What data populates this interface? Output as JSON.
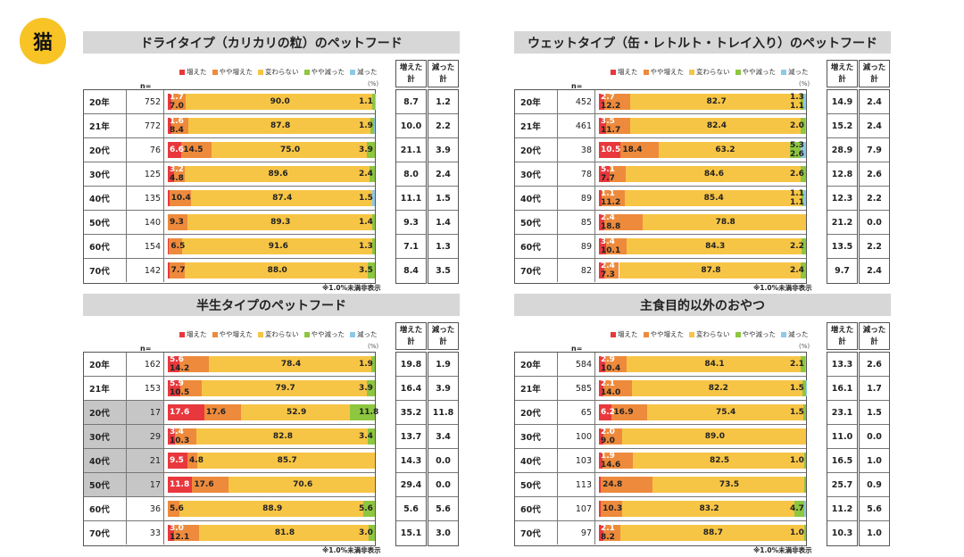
{
  "category_badge": "猫",
  "legend": [
    "増えた",
    "やや増えた",
    "変わらない",
    "やや減った",
    "減った"
  ],
  "pct_unit": "(%)",
  "n_header": "n=",
  "col_headers": {
    "up": "増えた計",
    "down": "減った計"
  },
  "note": "※1.0%未満非表示",
  "colors": {
    "increased": "#e8383d",
    "slightly_increased": "#ee8a3c",
    "unchanged": "#f7c545",
    "slightly_decreased": "#8dc63f",
    "decreased": "#8ec9e8",
    "title_bg": "#d7d7d7",
    "badge": "#f7c325",
    "gray_row": "#c6c6c6"
  },
  "chart_data": [
    {
      "type": "bar",
      "title": "ドライタイプ（カリカリの粒）のペットフード",
      "series_names": [
        "増えた",
        "やや増えた",
        "変わらない",
        "やや減った",
        "減った"
      ],
      "rows": [
        {
          "label": "20年",
          "n": "752",
          "values": [
            1.7,
            7.0,
            90.0,
            1.1,
            0.3
          ],
          "up": "8.7",
          "down": "1.2"
        },
        {
          "label": "21年",
          "n": "772",
          "values": [
            1.6,
            8.4,
            87.8,
            1.9,
            0.3
          ],
          "up": "10.0",
          "down": "2.2"
        },
        {
          "label": "20代",
          "n": "76",
          "values": [
            6.6,
            14.5,
            75.0,
            3.9,
            0
          ],
          "up": "21.1",
          "down": "3.9"
        },
        {
          "label": "30代",
          "n": "125",
          "values": [
            3.2,
            4.8,
            89.6,
            2.4,
            0
          ],
          "up": "8.0",
          "down": "2.4"
        },
        {
          "label": "40代",
          "n": "135",
          "values": [
            0.7,
            10.4,
            87.4,
            0,
            1.5
          ],
          "up": "11.1",
          "down": "1.5"
        },
        {
          "label": "50代",
          "n": "140",
          "values": [
            0,
            9.3,
            89.3,
            1.4,
            0
          ],
          "up": "9.3",
          "down": "1.4"
        },
        {
          "label": "60代",
          "n": "154",
          "values": [
            0.6,
            6.5,
            91.6,
            1.3,
            0
          ],
          "up": "7.1",
          "down": "1.3"
        },
        {
          "label": "70代",
          "n": "142",
          "values": [
            0.7,
            7.7,
            88.0,
            3.5,
            0
          ],
          "up": "8.4",
          "down": "3.5"
        }
      ]
    },
    {
      "type": "bar",
      "title": "ウェットタイプ（缶・レトルト・トレイ入り）のペットフード",
      "series_names": [
        "増えた",
        "やや増えた",
        "変わらない",
        "やや減った",
        "減った"
      ],
      "rows": [
        {
          "label": "20年",
          "n": "452",
          "values": [
            2.7,
            12.2,
            82.7,
            1.3,
            1.1
          ],
          "up": "14.9",
          "down": "2.4"
        },
        {
          "label": "21年",
          "n": "461",
          "values": [
            3.5,
            11.7,
            82.4,
            2.0,
            0.4
          ],
          "up": "15.2",
          "down": "2.4"
        },
        {
          "label": "20代",
          "n": "38",
          "values": [
            10.5,
            18.4,
            63.2,
            5.3,
            2.6
          ],
          "up": "28.9",
          "down": "7.9"
        },
        {
          "label": "30代",
          "n": "78",
          "values": [
            5.1,
            7.7,
            84.6,
            2.6,
            0
          ],
          "up": "12.8",
          "down": "2.6"
        },
        {
          "label": "40代",
          "n": "89",
          "values": [
            1.1,
            11.2,
            85.4,
            1.1,
            1.1
          ],
          "up": "12.3",
          "down": "2.2"
        },
        {
          "label": "50代",
          "n": "85",
          "values": [
            2.4,
            18.8,
            78.8,
            0,
            0
          ],
          "up": "21.2",
          "down": "0.0"
        },
        {
          "label": "60代",
          "n": "89",
          "values": [
            3.4,
            10.1,
            84.3,
            2.2,
            0
          ],
          "up": "13.5",
          "down": "2.2"
        },
        {
          "label": "70代",
          "n": "82",
          "values": [
            2.4,
            7.3,
            87.8,
            2.4,
            0
          ],
          "up": "9.7",
          "down": "2.4"
        }
      ]
    },
    {
      "type": "bar",
      "title": "半生タイプのペットフード",
      "series_names": [
        "増えた",
        "やや増えた",
        "変わらない",
        "やや減った",
        "減った"
      ],
      "rows": [
        {
          "label": "20年",
          "n": "162",
          "values": [
            5.6,
            14.2,
            78.4,
            1.9,
            0
          ],
          "up": "19.8",
          "down": "1.9"
        },
        {
          "label": "21年",
          "n": "153",
          "values": [
            5.9,
            10.5,
            79.7,
            3.9,
            0
          ],
          "up": "16.4",
          "down": "3.9"
        },
        {
          "label": "20代",
          "n": "17",
          "values": [
            17.6,
            17.6,
            52.9,
            11.8,
            0
          ],
          "up": "35.2",
          "down": "11.8",
          "gray": true
        },
        {
          "label": "30代",
          "n": "29",
          "values": [
            3.4,
            10.3,
            82.8,
            3.4,
            0
          ],
          "up": "13.7",
          "down": "3.4",
          "gray": true
        },
        {
          "label": "40代",
          "n": "21",
          "values": [
            9.5,
            4.8,
            85.7,
            0,
            0
          ],
          "up": "14.3",
          "down": "0.0",
          "gray": true
        },
        {
          "label": "50代",
          "n": "17",
          "values": [
            11.8,
            17.6,
            70.6,
            0,
            0
          ],
          "up": "29.4",
          "down": "0.0",
          "gray": true
        },
        {
          "label": "60代",
          "n": "36",
          "values": [
            0,
            5.6,
            88.9,
            5.6,
            0
          ],
          "up": "5.6",
          "down": "5.6"
        },
        {
          "label": "70代",
          "n": "33",
          "values": [
            3.0,
            12.1,
            81.8,
            3.0,
            0
          ],
          "up": "15.1",
          "down": "3.0"
        }
      ]
    },
    {
      "type": "bar",
      "title": "主食目的以外のおやつ",
      "series_names": [
        "増えた",
        "やや増えた",
        "変わらない",
        "やや減った",
        "減った"
      ],
      "rows": [
        {
          "label": "20年",
          "n": "584",
          "values": [
            2.9,
            10.4,
            84.1,
            2.1,
            0.5
          ],
          "up": "13.3",
          "down": "2.6"
        },
        {
          "label": "21年",
          "n": "585",
          "values": [
            2.1,
            14.0,
            82.2,
            1.5,
            0.2
          ],
          "up": "16.1",
          "down": "1.7"
        },
        {
          "label": "20代",
          "n": "65",
          "values": [
            6.2,
            16.9,
            75.4,
            1.5,
            0
          ],
          "up": "23.1",
          "down": "1.5"
        },
        {
          "label": "30代",
          "n": "100",
          "values": [
            2.0,
            9.0,
            89.0,
            0,
            0
          ],
          "up": "11.0",
          "down": "0.0"
        },
        {
          "label": "40代",
          "n": "103",
          "values": [
            1.9,
            14.6,
            82.5,
            1.0,
            0
          ],
          "up": "16.5",
          "down": "1.0"
        },
        {
          "label": "50代",
          "n": "113",
          "values": [
            0.9,
            24.8,
            73.5,
            0.9,
            0
          ],
          "up": "25.7",
          "down": "0.9"
        },
        {
          "label": "60代",
          "n": "107",
          "values": [
            0.9,
            10.3,
            83.2,
            4.7,
            0.9
          ],
          "up": "11.2",
          "down": "5.6"
        },
        {
          "label": "70代",
          "n": "97",
          "values": [
            2.1,
            8.2,
            88.7,
            1.0,
            0
          ],
          "up": "10.3",
          "down": "1.0"
        }
      ]
    }
  ]
}
